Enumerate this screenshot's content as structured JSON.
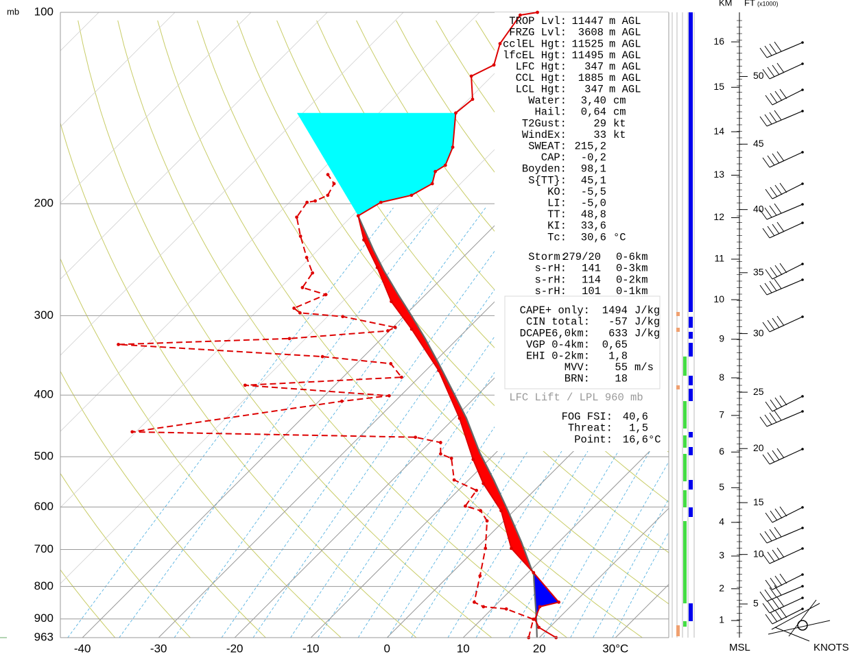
{
  "chart_data": {
    "type": "skewt",
    "y_unit": "mb",
    "ylim": [
      963,
      100
    ],
    "yticks": [
      100,
      200,
      300,
      400,
      500,
      600,
      700,
      800,
      900,
      963
    ],
    "xlim": [
      -42.9,
      37.0
    ],
    "xticks": [
      -40,
      -30,
      -20,
      -10,
      0,
      10,
      20,
      {
        "value": 30,
        "label": "30°C"
      }
    ],
    "series": [
      {
        "style": "dashed",
        "color": "#dd0000",
        "markers": true,
        "temperature": [
          18.6,
          16.8,
          11.9,
          8.6,
          6.8,
          4.1,
          1.2,
          -2.2,
          -4.4,
          -7.0,
          -7.6,
          -11.9,
          -15.1,
          -17.1,
          -18.6,
          -22.6,
          -60.5,
          -37.0,
          -31.5,
          -51.8,
          -32.3,
          -35.5,
          -45.4,
          -73.8,
          -52.1,
          -40.2,
          -39.7,
          -48.0,
          -54.1,
          -55.5,
          -53.1,
          -57.1,
          -57.7,
          -60.5,
          -64.1,
          -67.1,
          -67.7,
          -66.8,
          -65.9,
          -66.6,
          -68.6
        ],
        "pressure": [
          963,
          901,
          868,
          861,
          847,
          770,
          697,
          631,
          608,
          598,
          565,
          544,
          503,
          495,
          475,
          466,
          457,
          409,
          401,
          386,
          375,
          357,
          348,
          333,
          326,
          317,
          313,
          301,
          297,
          292,
          278,
          271,
          257,
          243,
          225,
          210,
          199,
          198,
          194,
          186,
          180
        ]
      },
      {
        "style": "solid",
        "color": "#666666",
        "markers": false,
        "temperature": [
          19.7,
          17.2,
          11.0,
          5.0,
          -0.8,
          -6.7,
          -12.1,
          -18.4,
          -23.8,
          -29.2,
          -34.1,
          -38.9,
          -43.6,
          -48.6,
          -52.6,
          -59.2
        ],
        "pressure": [
          963,
          901,
          767,
          680,
          608,
          544,
          493,
          435,
          394,
          357,
          327,
          301,
          278,
          255,
          237,
          209
        ]
      },
      {
        "style": "solid",
        "color": "#dd0000",
        "markers": true,
        "temperature": [
          22.2,
          18.6,
          17.0,
          16.0,
          17.9,
          10.7,
          4.6,
          -1.7,
          -7.6,
          -12.1,
          -19.3,
          -28.3,
          -37.3,
          -43.6,
          -49.9,
          -55.3,
          -59.2,
          -58.0,
          -54.9,
          -53.7,
          -54.9,
          -54.4,
          -55.8,
          -59.9,
          -59.5,
          -62.7,
          -61.2,
          -63.2,
          -64.3,
          -62.4
        ],
        "pressure": [
          963,
          928,
          901,
          861,
          847,
          761,
          697,
          608,
          551,
          505,
          435,
          366,
          315,
          285,
          252,
          228,
          209,
          199,
          194,
          186,
          178,
          174,
          163,
          144,
          137,
          126,
          121,
          112,
          101,
          100
        ]
      }
    ],
    "cape_color": "#ff0000",
    "cin_color": "#0000ff",
    "tropo_color": "#00ffff",
    "height_axis": {
      "km_label": "KM",
      "ft_label": "FT",
      "ft_unit": "(x1000)",
      "base_label": "MSL",
      "wind_label": "KNOTS",
      "km_ticks": [
        1,
        2,
        3,
        4,
        5,
        6,
        7,
        8,
        9,
        10,
        11,
        12,
        13,
        14,
        15,
        16
      ],
      "kft_ticks": [
        5,
        10,
        15,
        20,
        25,
        30,
        35,
        40,
        45,
        50
      ]
    }
  },
  "panel": {
    "groups": [
      {
        "rows": [
          {
            "label": "TROP Lvl:",
            "value": "11447",
            "unit": "m AGL"
          },
          {
            "label": "FRZG Lvl:",
            "value": "3608",
            "unit": "m AGL"
          },
          {
            "label": "cclEL Hgt:",
            "value": "11525",
            "unit": "m AGL"
          },
          {
            "label": "lfcEL Hgt:",
            "value": "11495",
            "unit": "m AGL"
          },
          {
            "label": "LFC Hgt:",
            "value": "347",
            "unit": "m AGL"
          },
          {
            "label": "CCL Hgt:",
            "value": "1885",
            "unit": "m AGL"
          },
          {
            "label": "LCL Hgt:",
            "value": "347",
            "unit": "m AGL"
          }
        ]
      },
      {
        "rows": [
          {
            "label": "Water:",
            "value": "3,40",
            "unit": "cm"
          },
          {
            "label": "Hail:",
            "value": "0,64",
            "unit": "cm"
          },
          {
            "label": "T2Gust:",
            "value": "29",
            "unit": "kt"
          },
          {
            "label": "WindEx:",
            "value": "33",
            "unit": "kt"
          },
          {
            "label": "SWEAT:",
            "value": "215,2"
          },
          {
            "label": "CAP:",
            "value": "-0,2"
          },
          {
            "label": "Boyden:",
            "value": "98,1"
          },
          {
            "label": "S{TT}:",
            "value": "45,1"
          },
          {
            "label": "KO:",
            "value": "-5,5"
          },
          {
            "label": "LI:",
            "value": "-5,0"
          },
          {
            "label": "TT:",
            "value": "48,8"
          },
          {
            "label": "KI:",
            "value": "33,6"
          },
          {
            "label": "Tc:",
            "value": "30,6",
            "unit": "°C"
          }
        ]
      },
      {
        "rows": [
          {
            "label": "Storm:",
            "value": "279/20",
            "unit": "0-6km"
          },
          {
            "label": "s-rH:",
            "value": "141",
            "unit": "0-3km"
          },
          {
            "label": "s-rH:",
            "value": "114",
            "unit": "0-2km"
          },
          {
            "label": "s-rH:",
            "value": "101",
            "unit": "0-1km"
          }
        ]
      },
      {
        "rows": [
          {
            "label": "CAPE+ only:",
            "value": "1494",
            "unit": "J/kg"
          },
          {
            "label": "CIN total:",
            "value": "-57",
            "unit": "J/kg"
          },
          {
            "label": "DCAPE6,0km:",
            "value": "633",
            "unit": "J/kg"
          },
          {
            "label": "VGP 0-4km:",
            "value": "0,65"
          },
          {
            "label": "EHI 0-2km:",
            "value": "1,8"
          },
          {
            "label": "MVV:",
            "value": "55",
            "unit": "m/s"
          },
          {
            "label": "BRN:",
            "value": "18"
          }
        ]
      },
      {
        "rows": [
          {
            "label": "FOG FSI:",
            "value": "40,6"
          },
          {
            "label": "Threat:",
            "value": "1,5"
          },
          {
            "label": "Point:",
            "value": "16,6",
            "unit": "°C"
          }
        ]
      }
    ],
    "lift_note": "LFC Lift / LPL 960 mb"
  }
}
